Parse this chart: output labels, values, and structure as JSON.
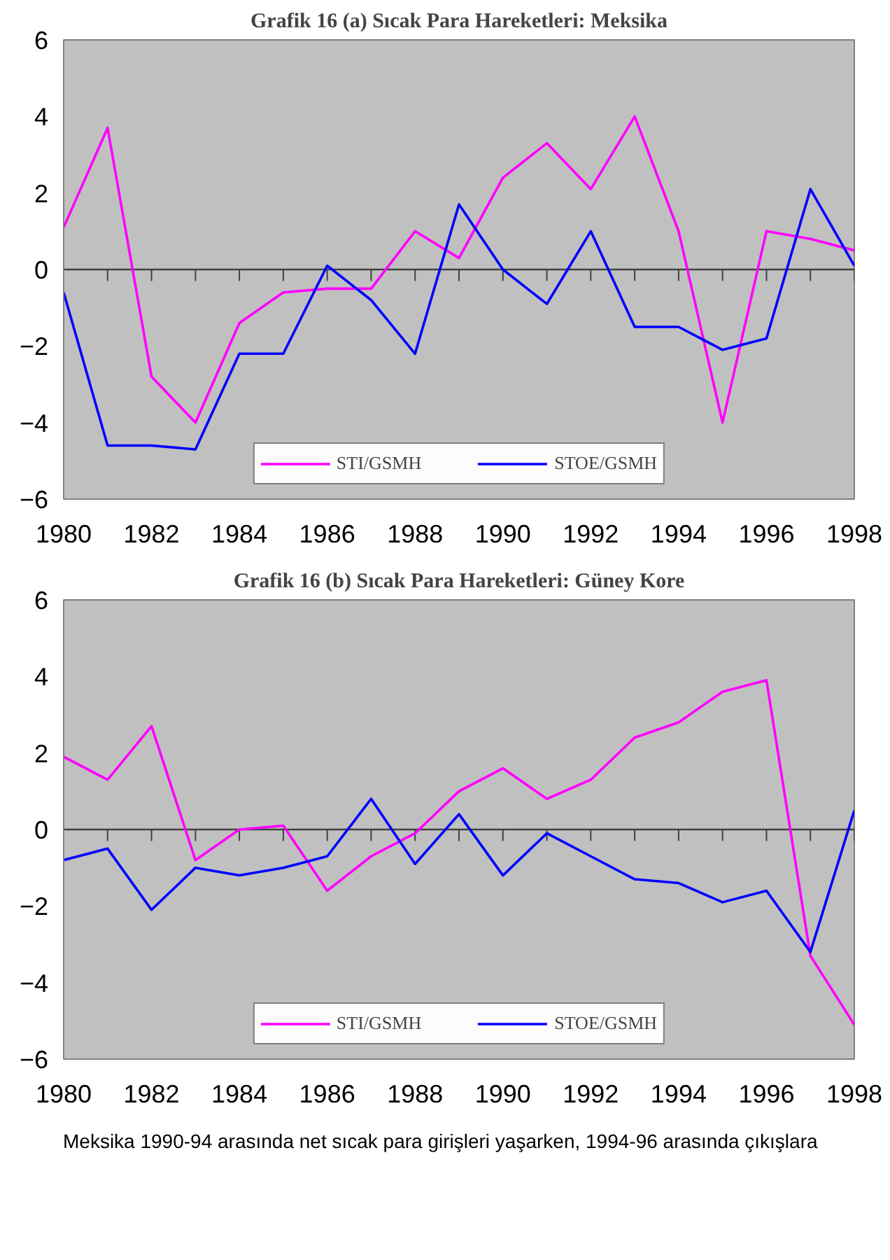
{
  "chart_data": [
    {
      "type": "line",
      "title": "Grafik 16 (a) Sıcak Para Hareketleri: Meksika",
      "x": [
        1980,
        1981,
        1982,
        1983,
        1984,
        1985,
        1986,
        1987,
        1988,
        1989,
        1990,
        1991,
        1992,
        1993,
        1994,
        1995,
        1996,
        1997,
        1998
      ],
      "series": [
        {
          "name": "STI/GSMH",
          "color": "#ff00ff",
          "values": [
            1.1,
            3.7,
            -2.8,
            -4.0,
            -1.4,
            -0.6,
            -0.5,
            -0.5,
            1.0,
            0.3,
            2.4,
            3.3,
            2.1,
            4.0,
            1.0,
            -4.0,
            1.0,
            0.8,
            0.5
          ]
        },
        {
          "name": "STOE/GSMH",
          "color": "#0000ff",
          "values": [
            -0.6,
            -4.6,
            -4.6,
            -4.7,
            -2.2,
            -2.2,
            0.1,
            -0.8,
            -2.2,
            1.7,
            0.0,
            -0.9,
            1.0,
            -1.5,
            -1.5,
            -2.1,
            -1.8,
            2.1,
            0.1
          ]
        }
      ],
      "xlim": [
        1980,
        1998
      ],
      "xticks": [
        1980,
        1982,
        1984,
        1986,
        1988,
        1990,
        1992,
        1994,
        1996,
        1998
      ],
      "ylim": [
        -6,
        6
      ],
      "yticks": [
        -6,
        -4,
        -2,
        0,
        2,
        4,
        6
      ],
      "ref_lines": [
        {
          "axis": "y",
          "value": 0,
          "color": "#404040"
        }
      ],
      "grid": false,
      "legend": "bottom",
      "marker": "none",
      "line_style": "solid"
    },
    {
      "type": "line",
      "title": "Grafik 16 (b) Sıcak Para Hareketleri: Güney Kore",
      "x": [
        1980,
        1981,
        1982,
        1983,
        1984,
        1985,
        1986,
        1987,
        1988,
        1989,
        1990,
        1991,
        1992,
        1993,
        1994,
        1995,
        1996,
        1997,
        1998
      ],
      "series": [
        {
          "name": "STI/GSMH",
          "color": "#ff00ff",
          "values": [
            1.9,
            1.3,
            2.7,
            -0.8,
            0.0,
            0.1,
            -1.6,
            -0.7,
            -0.1,
            1.0,
            1.6,
            0.8,
            1.3,
            2.4,
            2.8,
            3.6,
            3.9,
            -3.3,
            -5.1
          ]
        },
        {
          "name": "STOE/GSMH",
          "color": "#0000ff",
          "values": [
            -0.8,
            -0.5,
            -2.1,
            -1.0,
            -1.2,
            -1.0,
            -0.7,
            0.8,
            -0.9,
            0.4,
            -1.2,
            -0.1,
            -0.7,
            -1.3,
            -1.4,
            -1.9,
            -1.6,
            -3.2,
            0.5
          ]
        }
      ],
      "xlim": [
        1980,
        1998
      ],
      "xticks": [
        1980,
        1982,
        1984,
        1986,
        1988,
        1990,
        1992,
        1994,
        1996,
        1998
      ],
      "ylim": [
        -6,
        6
      ],
      "yticks": [
        -6,
        -4,
        -2,
        0,
        2,
        4,
        6
      ],
      "ref_lines": [
        {
          "axis": "y",
          "value": 0,
          "color": "#404040"
        }
      ],
      "grid": false,
      "legend": "bottom",
      "marker": "none",
      "line_style": "solid",
      "annotations": [
        "Meksika 1990-94 arasında net sıcak para girişleri yaşarken, 1994-96 arasında çıkışlara"
      ]
    }
  ]
}
